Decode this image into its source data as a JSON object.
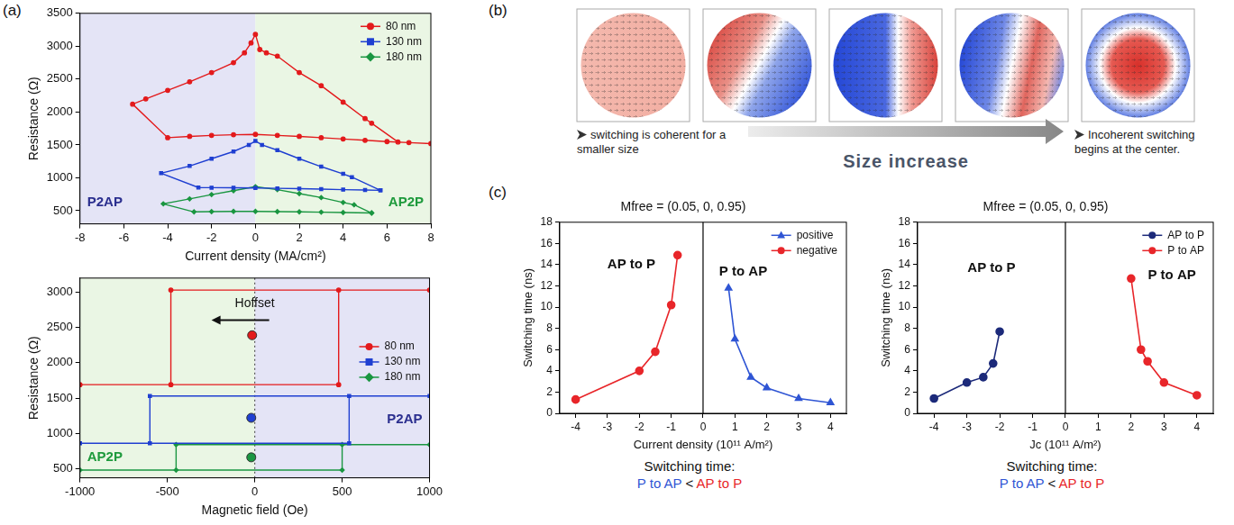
{
  "panel_labels": [
    "(a)",
    "(b)",
    "(c)"
  ],
  "diagram": {
    "arrow_text": "Size increase",
    "notes": [
      "switching is coherent for a smaller size",
      "Incoherent switching begins at the center."
    ]
  },
  "chart_data": [
    {
      "type": "line",
      "x_label": "Current density (MA/cm²)",
      "y_label": "Resistance (Ω)",
      "xlim": [
        -8,
        8
      ],
      "xticks": [
        -8,
        -6,
        -4,
        -2,
        0,
        2,
        4,
        6,
        8
      ],
      "ylim": [
        300,
        3500
      ],
      "yticks": [
        500,
        1000,
        1500,
        2000,
        2500,
        3000,
        3500
      ],
      "grid": false,
      "legend": "upper right",
      "regions": [
        {
          "x": [
            -8,
            0
          ],
          "color": "#e4e4f6",
          "label": "P2AP",
          "text_color": "#2b2f8f"
        },
        {
          "x": [
            0,
            8
          ],
          "color": "#eaf6e4",
          "label": "AP2P",
          "text_color": "#1e9a3c"
        }
      ],
      "series": [
        {
          "name": "80 nm",
          "color": "#e31a1c",
          "marker": "circle",
          "x": [
            8,
            7,
            6,
            5,
            4,
            3,
            2,
            1,
            0,
            -1,
            -2,
            -3,
            -4,
            -5.6,
            -5,
            -4,
            -3,
            -2,
            -1,
            -0.5,
            -0.2,
            0,
            0.2,
            0.5,
            1,
            2,
            3,
            4,
            5,
            5.3,
            6.5
          ],
          "values": [
            1520,
            1535,
            1550,
            1570,
            1590,
            1610,
            1630,
            1645,
            1660,
            1655,
            1645,
            1630,
            1610,
            2120,
            2200,
            2330,
            2460,
            2600,
            2750,
            2900,
            3050,
            3180,
            2950,
            2900,
            2850,
            2600,
            2400,
            2150,
            1900,
            1830,
            1545
          ]
        },
        {
          "name": "130 nm",
          "color": "#1f3fd1",
          "marker": "square",
          "x": [
            5.7,
            5,
            4,
            3,
            2,
            1,
            0,
            -1,
            -2,
            -2.6,
            -4.3,
            -3,
            -2,
            -1,
            -0.3,
            0,
            0.3,
            1,
            2,
            3,
            4,
            4.4,
            5.7
          ],
          "values": [
            810,
            815,
            820,
            828,
            835,
            840,
            845,
            848,
            850,
            852,
            1070,
            1180,
            1290,
            1400,
            1500,
            1560,
            1500,
            1420,
            1290,
            1170,
            1060,
            1010,
            810
          ]
        },
        {
          "name": "180 nm",
          "color": "#1a9641",
          "marker": "diamond",
          "x": [
            5.3,
            4,
            3,
            2,
            1,
            0,
            -1,
            -2,
            -2.8,
            -4.2,
            -3,
            -2,
            -1,
            0,
            1,
            2,
            3,
            4,
            4.5,
            5.3
          ],
          "values": [
            465,
            472,
            478,
            483,
            487,
            490,
            490,
            487,
            482,
            605,
            680,
            745,
            805,
            865,
            820,
            760,
            700,
            625,
            590,
            465
          ]
        }
      ]
    },
    {
      "type": "line",
      "x_label": "Magnetic field (Oe)",
      "y_label": "Resistance (Ω)",
      "xlim": [
        -1000,
        1000
      ],
      "xticks": [
        -1000,
        -500,
        0,
        500,
        1000
      ],
      "ylim": [
        370,
        3200
      ],
      "yticks": [
        500,
        1000,
        1500,
        2000,
        2500,
        3000
      ],
      "grid": false,
      "legend": "right",
      "vline": 0,
      "regions": [
        {
          "x": [
            -1000,
            0
          ],
          "color": "#eaf6e4",
          "label": "AP2P",
          "text_color": "#1e9a3c"
        },
        {
          "x": [
            0,
            1000
          ],
          "color": "#e4e4f6",
          "label": "P2AP",
          "text_color": "#2b2f8f"
        }
      ],
      "annotations": [
        {
          "text": "Hoffset"
        }
      ],
      "series": [
        {
          "name": "80 nm",
          "color": "#e31a1c",
          "marker": "circle",
          "x": [
            -1000,
            480,
            480,
            1000,
            -480,
            -480
          ],
          "values": [
            1690,
            1690,
            3030,
            3030,
            3030,
            1690
          ],
          "center": {
            "x": -15,
            "y": 2390
          }
        },
        {
          "name": "130 nm",
          "color": "#1f3fd1",
          "marker": "square",
          "x": [
            -1000,
            540,
            540,
            1000,
            -600,
            -600
          ],
          "values": [
            860,
            860,
            1530,
            1530,
            1530,
            860
          ],
          "center": {
            "x": -20,
            "y": 1220
          }
        },
        {
          "name": "180 nm",
          "color": "#1a9641",
          "marker": "diamond",
          "x": [
            -1000,
            500,
            500,
            1000,
            -450,
            -450
          ],
          "values": [
            480,
            480,
            840,
            840,
            840,
            480
          ],
          "center": {
            "x": -20,
            "y": 660
          }
        }
      ]
    },
    {
      "type": "line",
      "title": "Mfree = (0.05, 0, 0.95)",
      "x_label": "Current density (10¹¹ A/m²)",
      "y_label": "Switching time (ns)",
      "xlim": [
        -4.5,
        4.5
      ],
      "xticks": [
        -4,
        -3,
        -2,
        -1,
        0,
        1,
        2,
        3,
        4
      ],
      "ylim": [
        0,
        18
      ],
      "yticks": [
        0,
        2,
        4,
        6,
        8,
        10,
        12,
        14,
        16,
        18
      ],
      "grid": false,
      "legend": "upper right",
      "vline": 0,
      "annotations": [
        {
          "text": "AP to P"
        },
        {
          "text": "P to AP"
        }
      ],
      "series": [
        {
          "name": "positive",
          "color": "#2f55d4",
          "marker": "triangle",
          "x": [
            0.8,
            1,
            1.5,
            2,
            3,
            4
          ],
          "values": [
            11.8,
            7,
            3.4,
            2.4,
            1.4,
            1.0
          ]
        },
        {
          "name": "negative",
          "color": "#e8262a",
          "marker": "circle",
          "x": [
            -4,
            -2,
            -1.5,
            -1,
            -0.8
          ],
          "values": [
            1.3,
            4,
            5.8,
            10.2,
            14.9
          ]
        }
      ],
      "caption": {
        "text": "Switching time:",
        "parts": [
          {
            "text": "P to AP",
            "color": "#2f55d4"
          },
          {
            "text": "<",
            "color": "#111111"
          },
          {
            "text": "AP to P",
            "color": "#e8262a"
          }
        ]
      }
    },
    {
      "type": "line",
      "title": "Mfree = (0.05, 0, 0.95)",
      "x_label": "Jc (10¹¹ A/m²)",
      "y_label": "Switching time (ns)",
      "xlim": [
        -4.5,
        4.5
      ],
      "xticks": [
        -4,
        -3,
        -2,
        -1,
        0,
        1,
        2,
        3,
        4
      ],
      "ylim": [
        0,
        18
      ],
      "yticks": [
        0,
        2,
        4,
        6,
        8,
        10,
        12,
        14,
        16,
        18
      ],
      "grid": false,
      "legend": "upper right",
      "vline": 0,
      "annotations": [
        {
          "text": "AP to P"
        },
        {
          "text": "P to AP"
        }
      ],
      "series": [
        {
          "name": "AP to P",
          "color": "#1c2a7a",
          "marker": "circle",
          "x": [
            -4,
            -3,
            -2.5,
            -2.2,
            -2
          ],
          "values": [
            1.4,
            2.9,
            3.4,
            4.7,
            7.7
          ]
        },
        {
          "name": "P to AP",
          "color": "#e8262a",
          "marker": "circle",
          "x": [
            2,
            2.3,
            2.5,
            3,
            4
          ],
          "values": [
            12.7,
            6,
            4.9,
            2.9,
            1.7
          ]
        }
      ],
      "caption": {
        "text": "Switching time:",
        "parts": [
          {
            "text": "P to AP",
            "color": "#2f55d4"
          },
          {
            "text": "<",
            "color": "#111111"
          },
          {
            "text": "AP to P",
            "color": "#e8262a"
          }
        ]
      }
    }
  ]
}
